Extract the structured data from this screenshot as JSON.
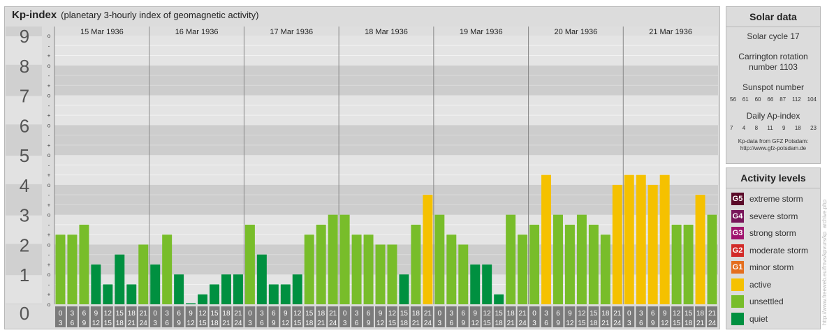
{
  "title": "Kp-index",
  "subtitle": "(planetary 3-hourly index of geomagnetic activity)",
  "chart_data": {
    "type": "bar",
    "title": "Kp-index",
    "subtitle": "(planetary 3-hourly index of geomagnetic activity)",
    "ylim": [
      0,
      9
    ],
    "y_major_ticks": [
      "0",
      "1",
      "2",
      "3",
      "4",
      "5",
      "6",
      "7",
      "8",
      "9"
    ],
    "y_minor_labels": [
      "o",
      "+",
      "-"
    ],
    "days": [
      "15 Mar 1936",
      "16 Mar 1936",
      "17 Mar 1936",
      "18 Mar 1936",
      "19 Mar 1936",
      "20 Mar 1936",
      "21 Mar 1936"
    ],
    "hour_labels": [
      [
        "0",
        "3"
      ],
      [
        "3",
        "6"
      ],
      [
        "6",
        "9"
      ],
      [
        "9",
        "12"
      ],
      [
        "12",
        "15"
      ],
      [
        "15",
        "18"
      ],
      [
        "18",
        "21"
      ],
      [
        "21",
        "24"
      ]
    ],
    "values": [
      2.333,
      2.333,
      2.667,
      1.333,
      0.667,
      1.667,
      0.667,
      2.0,
      1.333,
      2.333,
      1.0,
      0.0,
      0.333,
      0.667,
      1.0,
      1.0,
      2.667,
      1.667,
      0.667,
      0.667,
      1.0,
      2.333,
      2.667,
      3.0,
      3.0,
      2.333,
      2.333,
      2.0,
      2.0,
      1.0,
      2.667,
      3.667,
      3.0,
      2.333,
      2.0,
      1.333,
      1.333,
      0.333,
      3.0,
      2.333,
      2.667,
      4.333,
      3.0,
      2.667,
      3.0,
      2.667,
      2.333,
      4.0,
      4.333,
      4.333,
      4.0,
      4.333,
      2.667,
      2.667,
      3.667,
      3.0
    ],
    "level_colors": {
      "quiet": "#009040",
      "unsettled": "#78bd2a",
      "active": "#f5c100"
    }
  },
  "solar": {
    "title": "Solar data",
    "cycle": "Solar cycle 17",
    "carrington_line1": "Carrington rotation",
    "carrington_line2": "number 1103",
    "sunspot_title": "Sunspot number",
    "sunspot_values": [
      "56",
      "61",
      "60",
      "66",
      "87",
      "112",
      "104"
    ],
    "ap_title": "Daily Ap-index",
    "ap_values": [
      "7",
      "4",
      "8",
      "11",
      "9",
      "18",
      "23"
    ],
    "source_line1": "Kp-data from GFZ Potsdam:",
    "source_line2": "http://www.gfz-potsdam.de"
  },
  "activity": {
    "title": "Activity levels",
    "levels": [
      {
        "badge": "G5",
        "label": "extreme storm",
        "color": "#5a0a28"
      },
      {
        "badge": "G4",
        "label": "severe storm",
        "color": "#78145a"
      },
      {
        "badge": "G3",
        "label": "strong storm",
        "color": "#a0146e"
      },
      {
        "badge": "G2",
        "label": "moderate storm",
        "color": "#d22a28"
      },
      {
        "badge": "G1",
        "label": "minor storm",
        "color": "#e46e1e"
      },
      {
        "badge": "",
        "label": "active",
        "color": "#f5c100"
      },
      {
        "badge": "",
        "label": "unsettled",
        "color": "#78bd2a"
      },
      {
        "badge": "",
        "label": "quiet",
        "color": "#009040"
      }
    ]
  },
  "watermark": "http://www.freeweb.eu/fmvs/kpvurs/kp_archive.php"
}
